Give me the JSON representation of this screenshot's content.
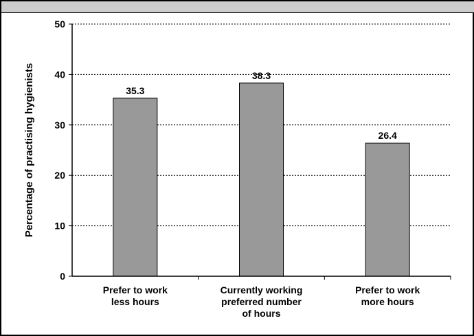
{
  "chart_data": {
    "type": "bar",
    "categories": [
      [
        "Prefer to work",
        "less hours"
      ],
      [
        "Currently working",
        "preferred number",
        "of hours"
      ],
      [
        "Prefer to work",
        "more hours"
      ]
    ],
    "values": [
      35.3,
      38.3,
      26.4
    ],
    "data_labels": [
      "35.3",
      "38.3",
      "26.4"
    ],
    "ylabel": "Percentage  of practising hygienists",
    "ylim": [
      0,
      50
    ],
    "yticks": [
      0,
      10,
      20,
      30,
      40,
      50
    ],
    "grid": true,
    "bar_color": "#999999"
  }
}
